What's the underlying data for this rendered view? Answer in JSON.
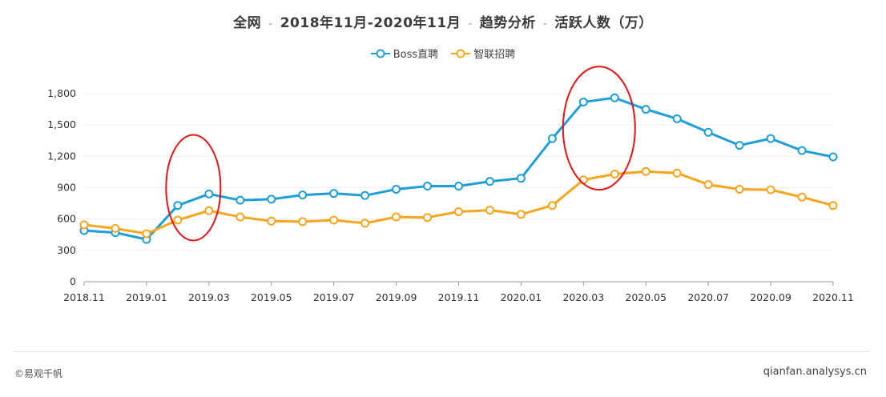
{
  "title": {
    "parts": [
      "全网",
      "2018年11月-2020年11月",
      "趋势分析",
      "活跃人数（万）"
    ],
    "separator": "-"
  },
  "footer": {
    "left": "©易观千帆",
    "right": "qianfan.analysys.cn"
  },
  "colors": {
    "boss": "#1f9fd9",
    "zhilian": "#f7a51e",
    "annotation": "#e31414",
    "grid": "#eeeeee",
    "axis": "#999999"
  },
  "chart_data": {
    "type": "line",
    "x": [
      "2018.11",
      "2018.12",
      "2019.01",
      "2019.02",
      "2019.03",
      "2019.04",
      "2019.05",
      "2019.06",
      "2019.07",
      "2019.08",
      "2019.09",
      "2019.10",
      "2019.11",
      "2019.12",
      "2020.01",
      "2020.02",
      "2020.03",
      "2020.04",
      "2020.05",
      "2020.06",
      "2020.07",
      "2020.08",
      "2020.09",
      "2020.10",
      "2020.11"
    ],
    "x_tick_labels": [
      "2018.11",
      "2019.01",
      "2019.03",
      "2019.05",
      "2019.07",
      "2019.09",
      "2019.11",
      "2020.01",
      "2020.03",
      "2020.05",
      "2020.07",
      "2020.09",
      "2020.11"
    ],
    "y_ticks": [
      "0",
      "300",
      "600",
      "900",
      "1,200",
      "1,500",
      "1,800"
    ],
    "ylim": [
      0,
      1800
    ],
    "series": [
      {
        "name": "Boss直聘",
        "color": "#1f9fd9",
        "values": [
          490,
          470,
          405,
          730,
          840,
          780,
          790,
          830,
          845,
          825,
          885,
          915,
          915,
          960,
          990,
          1370,
          1720,
          1760,
          1650,
          1560,
          1430,
          1305,
          1370,
          1255,
          1195
        ]
      },
      {
        "name": "智联招聘",
        "color": "#f7a51e",
        "values": [
          545,
          510,
          460,
          590,
          680,
          620,
          580,
          575,
          590,
          560,
          620,
          615,
          670,
          685,
          645,
          730,
          975,
          1030,
          1055,
          1040,
          930,
          885,
          880,
          810,
          730
        ]
      }
    ],
    "grid": true,
    "legend_position": "top-center"
  }
}
